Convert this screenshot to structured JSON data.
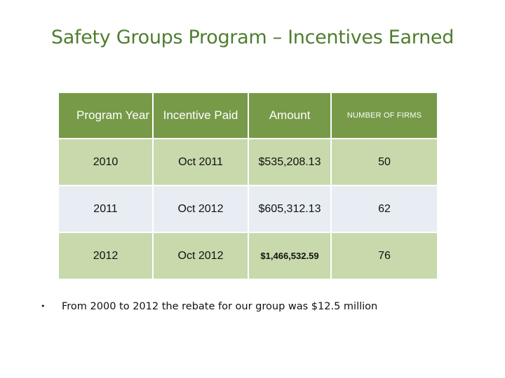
{
  "title": "Safety Groups Program – Incentives Earned",
  "table": {
    "headers": [
      "Program Year",
      "Incentive Paid",
      "Amount",
      "NUMBER OF FIRMS"
    ],
    "rows": [
      [
        "2010",
        "Oct 2011",
        "$535,208.13",
        "50"
      ],
      [
        "2011",
        "Oct 2012",
        "$605,312.13",
        "62"
      ],
      [
        "2012",
        "Oct 2012",
        "$1,466,532.59",
        "76"
      ]
    ]
  },
  "note": {
    "bullet": "•",
    "text": "From 2000 to 2012 the rebate for our group was $12.5 million"
  },
  "colors": {
    "header_bg": "#779a48",
    "row_green": "#c8d9ab",
    "row_gray": "#e8edf3",
    "title": "#4f7d2f"
  }
}
